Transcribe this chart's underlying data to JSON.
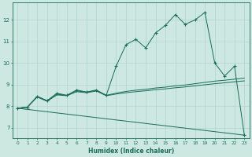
{
  "xlabel": "Humidex (Indice chaleur)",
  "background_color": "#cce8e0",
  "line_color": "#1a6b5a",
  "grid_color": "#aacfc8",
  "xlim": [
    -0.5,
    23.5
  ],
  "ylim": [
    6.5,
    12.8
  ],
  "x_ticks": [
    0,
    1,
    2,
    3,
    4,
    5,
    6,
    7,
    8,
    9,
    10,
    11,
    12,
    13,
    14,
    15,
    16,
    17,
    18,
    19,
    20,
    21,
    22,
    23
  ],
  "y_ticks": [
    7,
    8,
    9,
    10,
    11,
    12
  ],
  "series1_x": [
    0,
    1,
    2,
    3,
    4,
    5,
    6,
    7,
    8,
    9,
    10,
    11,
    12,
    13,
    14,
    15,
    16,
    17,
    18,
    19,
    20,
    21,
    22,
    23
  ],
  "series1_y": [
    7.9,
    7.95,
    8.45,
    8.25,
    8.6,
    8.5,
    8.75,
    8.65,
    8.75,
    8.5,
    9.85,
    10.85,
    11.1,
    10.7,
    11.4,
    11.75,
    12.25,
    11.8,
    12.0,
    12.35,
    10.0,
    9.4,
    9.85,
    6.65
  ],
  "series2_x": [
    0,
    1,
    2,
    3,
    4,
    5,
    6,
    7,
    8,
    9,
    10,
    11,
    12,
    13,
    14,
    15,
    16,
    17,
    18,
    19,
    20,
    21,
    22,
    23
  ],
  "series2_y": [
    7.9,
    7.95,
    8.45,
    8.25,
    8.55,
    8.5,
    8.7,
    8.65,
    8.72,
    8.5,
    8.6,
    8.68,
    8.74,
    8.78,
    8.84,
    8.88,
    8.94,
    8.98,
    9.04,
    9.1,
    9.16,
    9.2,
    9.25,
    9.3
  ],
  "series3_x": [
    0,
    1,
    2,
    3,
    4,
    5,
    6,
    7,
    8,
    9,
    10,
    11,
    12,
    13,
    14,
    15,
    16,
    17,
    18,
    19,
    20,
    21,
    22,
    23
  ],
  "series3_y": [
    7.9,
    7.95,
    8.42,
    8.22,
    8.52,
    8.48,
    8.67,
    8.62,
    8.7,
    8.48,
    8.56,
    8.62,
    8.67,
    8.71,
    8.76,
    8.8,
    8.85,
    8.89,
    8.94,
    8.99,
    9.04,
    9.08,
    9.13,
    9.17
  ],
  "series4_x": [
    0,
    23
  ],
  "series4_y": [
    7.9,
    6.65
  ]
}
